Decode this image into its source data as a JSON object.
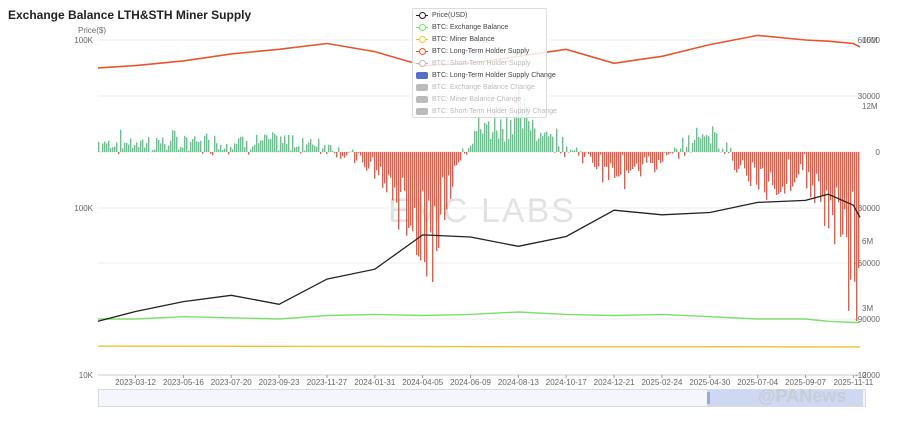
{
  "header": {
    "title": "Exchange Balance LTH&STH Miner Supply",
    "price_axis_unit": "Price($)"
  },
  "watermark": "EMC LABS",
  "brand": "@PANews",
  "legend": [
    {
      "label": "Price(USD)",
      "color": "#222222",
      "kind": "line",
      "active": true
    },
    {
      "label": "BTC: Exchange Balance",
      "color": "#7ddf6b",
      "kind": "line",
      "active": true
    },
    {
      "label": "BTC: Miner Balance",
      "color": "#f2c12e",
      "kind": "line",
      "active": true
    },
    {
      "label": "BTC: Long-Term Holder Supply",
      "color": "#e8552d",
      "kind": "line",
      "active": true
    },
    {
      "label": "BTC: Short-Term Holder Supply",
      "color": "#bbbbbb",
      "kind": "line",
      "active": false
    },
    {
      "label": "BTC: Long-Term Holder Supply Change",
      "color": "#5470c6",
      "kind": "box",
      "active": true
    },
    {
      "label": "BTC: Exchange Balance Change",
      "color": "#bbbbbb",
      "kind": "box",
      "active": false
    },
    {
      "label": "BTC: Miner Balance Change",
      "color": "#bbbbbb",
      "kind": "box",
      "active": false
    },
    {
      "label": "BTC: Short-Term Holder Supply Change",
      "color": "#bbbbbb",
      "kind": "box",
      "active": false
    }
  ],
  "chart_data": {
    "type": "line",
    "x_ticks": [
      "2023-03-12",
      "2023-05-16",
      "2023-07-20",
      "2023-09-23",
      "2023-11-27",
      "2024-01-31",
      "2024-04-05",
      "2024-06-09",
      "2024-08-13",
      "2024-10-17",
      "2024-12-21",
      "2025-02-24",
      "2025-04-30",
      "2025-07-04",
      "2025-09-07",
      "2025-11-11"
    ],
    "left_axis": {
      "label": "Price($)",
      "scale": "log",
      "ticks": [
        "100K",
        "100K",
        "10K"
      ]
    },
    "right_axis_outer": {
      "ticks": [
        "15M",
        "12M",
        "6M",
        "3M",
        "0"
      ]
    },
    "right_axis_inner": {
      "ticks": [
        "60000",
        "30000",
        "0",
        "-30000",
        "-60000",
        "-90000",
        "-12000"
      ]
    },
    "series": [
      {
        "name": "Price(USD)",
        "color": "#222222",
        "x": [
          "2023-01-20",
          "2023-03-12",
          "2023-05-16",
          "2023-07-20",
          "2023-09-23",
          "2023-11-27",
          "2024-01-31",
          "2024-04-05",
          "2024-06-09",
          "2024-08-13",
          "2024-10-17",
          "2024-12-21",
          "2025-02-24",
          "2025-04-30",
          "2025-07-04",
          "2025-09-07",
          "2025-10-08",
          "2025-11-11",
          "2025-11-20"
        ],
        "values": [
          21000,
          24000,
          27500,
          30000,
          26500,
          37500,
          43000,
          69000,
          67000,
          59000,
          67500,
          97000,
          91000,
          94000,
          108000,
          111000,
          121000,
          104000,
          88000
        ]
      },
      {
        "name": "BTC: Long-Term Holder Supply",
        "color": "#e8552d",
        "x": [
          "2023-01-20",
          "2023-03-12",
          "2023-05-16",
          "2023-07-20",
          "2023-09-23",
          "2023-11-27",
          "2024-01-31",
          "2024-04-05",
          "2024-06-09",
          "2024-08-13",
          "2024-10-17",
          "2024-12-21",
          "2025-02-24",
          "2025-04-30",
          "2025-07-04",
          "2025-09-07",
          "2025-10-08",
          "2025-11-11",
          "2025-11-20"
        ],
        "values": [
          13.8,
          13.9,
          14.1,
          14.4,
          14.6,
          14.85,
          14.5,
          13.9,
          14.0,
          14.3,
          14.6,
          14.0,
          14.3,
          14.8,
          15.2,
          15.0,
          14.95,
          14.85,
          14.7
        ]
      },
      {
        "name": "BTC: Exchange Balance",
        "color": "#7ddf6b",
        "x": [
          "2023-01-20",
          "2023-03-12",
          "2023-05-16",
          "2023-07-20",
          "2023-09-23",
          "2023-11-27",
          "2024-01-31",
          "2024-04-05",
          "2024-06-09",
          "2024-08-13",
          "2024-10-17",
          "2024-12-21",
          "2025-02-24",
          "2025-04-30",
          "2025-07-04",
          "2025-09-07",
          "2025-10-08",
          "2025-11-11",
          "2025-11-20"
        ],
        "values": [
          3.0,
          3.0,
          3.1,
          3.05,
          3.0,
          3.15,
          3.2,
          3.15,
          3.2,
          3.3,
          3.2,
          3.15,
          3.2,
          3.1,
          3.0,
          3.0,
          2.9,
          2.85,
          2.85
        ]
      },
      {
        "name": "BTC: Miner Balance",
        "color": "#f2c12e",
        "x": [
          "2023-01-20",
          "2023-11-27",
          "2024-08-13",
          "2025-04-30",
          "2025-11-20"
        ],
        "values": [
          1.83,
          1.82,
          1.81,
          1.81,
          1.8
        ]
      },
      {
        "name": "BTC: Long-Term Holder Supply Change",
        "color": "#5470c6",
        "x": [
          "2023-03-12",
          "2023-07-20",
          "2023-11-27",
          "2024-01-31",
          "2024-03-15",
          "2024-04-05",
          "2024-06-09",
          "2024-08-13",
          "2024-10-17",
          "2024-12-21",
          "2025-02-24",
          "2025-04-30",
          "2025-07-04",
          "2025-09-07",
          "2025-10-20",
          "2025-11-11"
        ],
        "values": [
          7000,
          8000,
          6000,
          -14000,
          -48000,
          -85000,
          15000,
          28000,
          5000,
          -16000,
          -8000,
          18000,
          -28000,
          -14000,
          -62000,
          -83000
        ]
      }
    ]
  }
}
